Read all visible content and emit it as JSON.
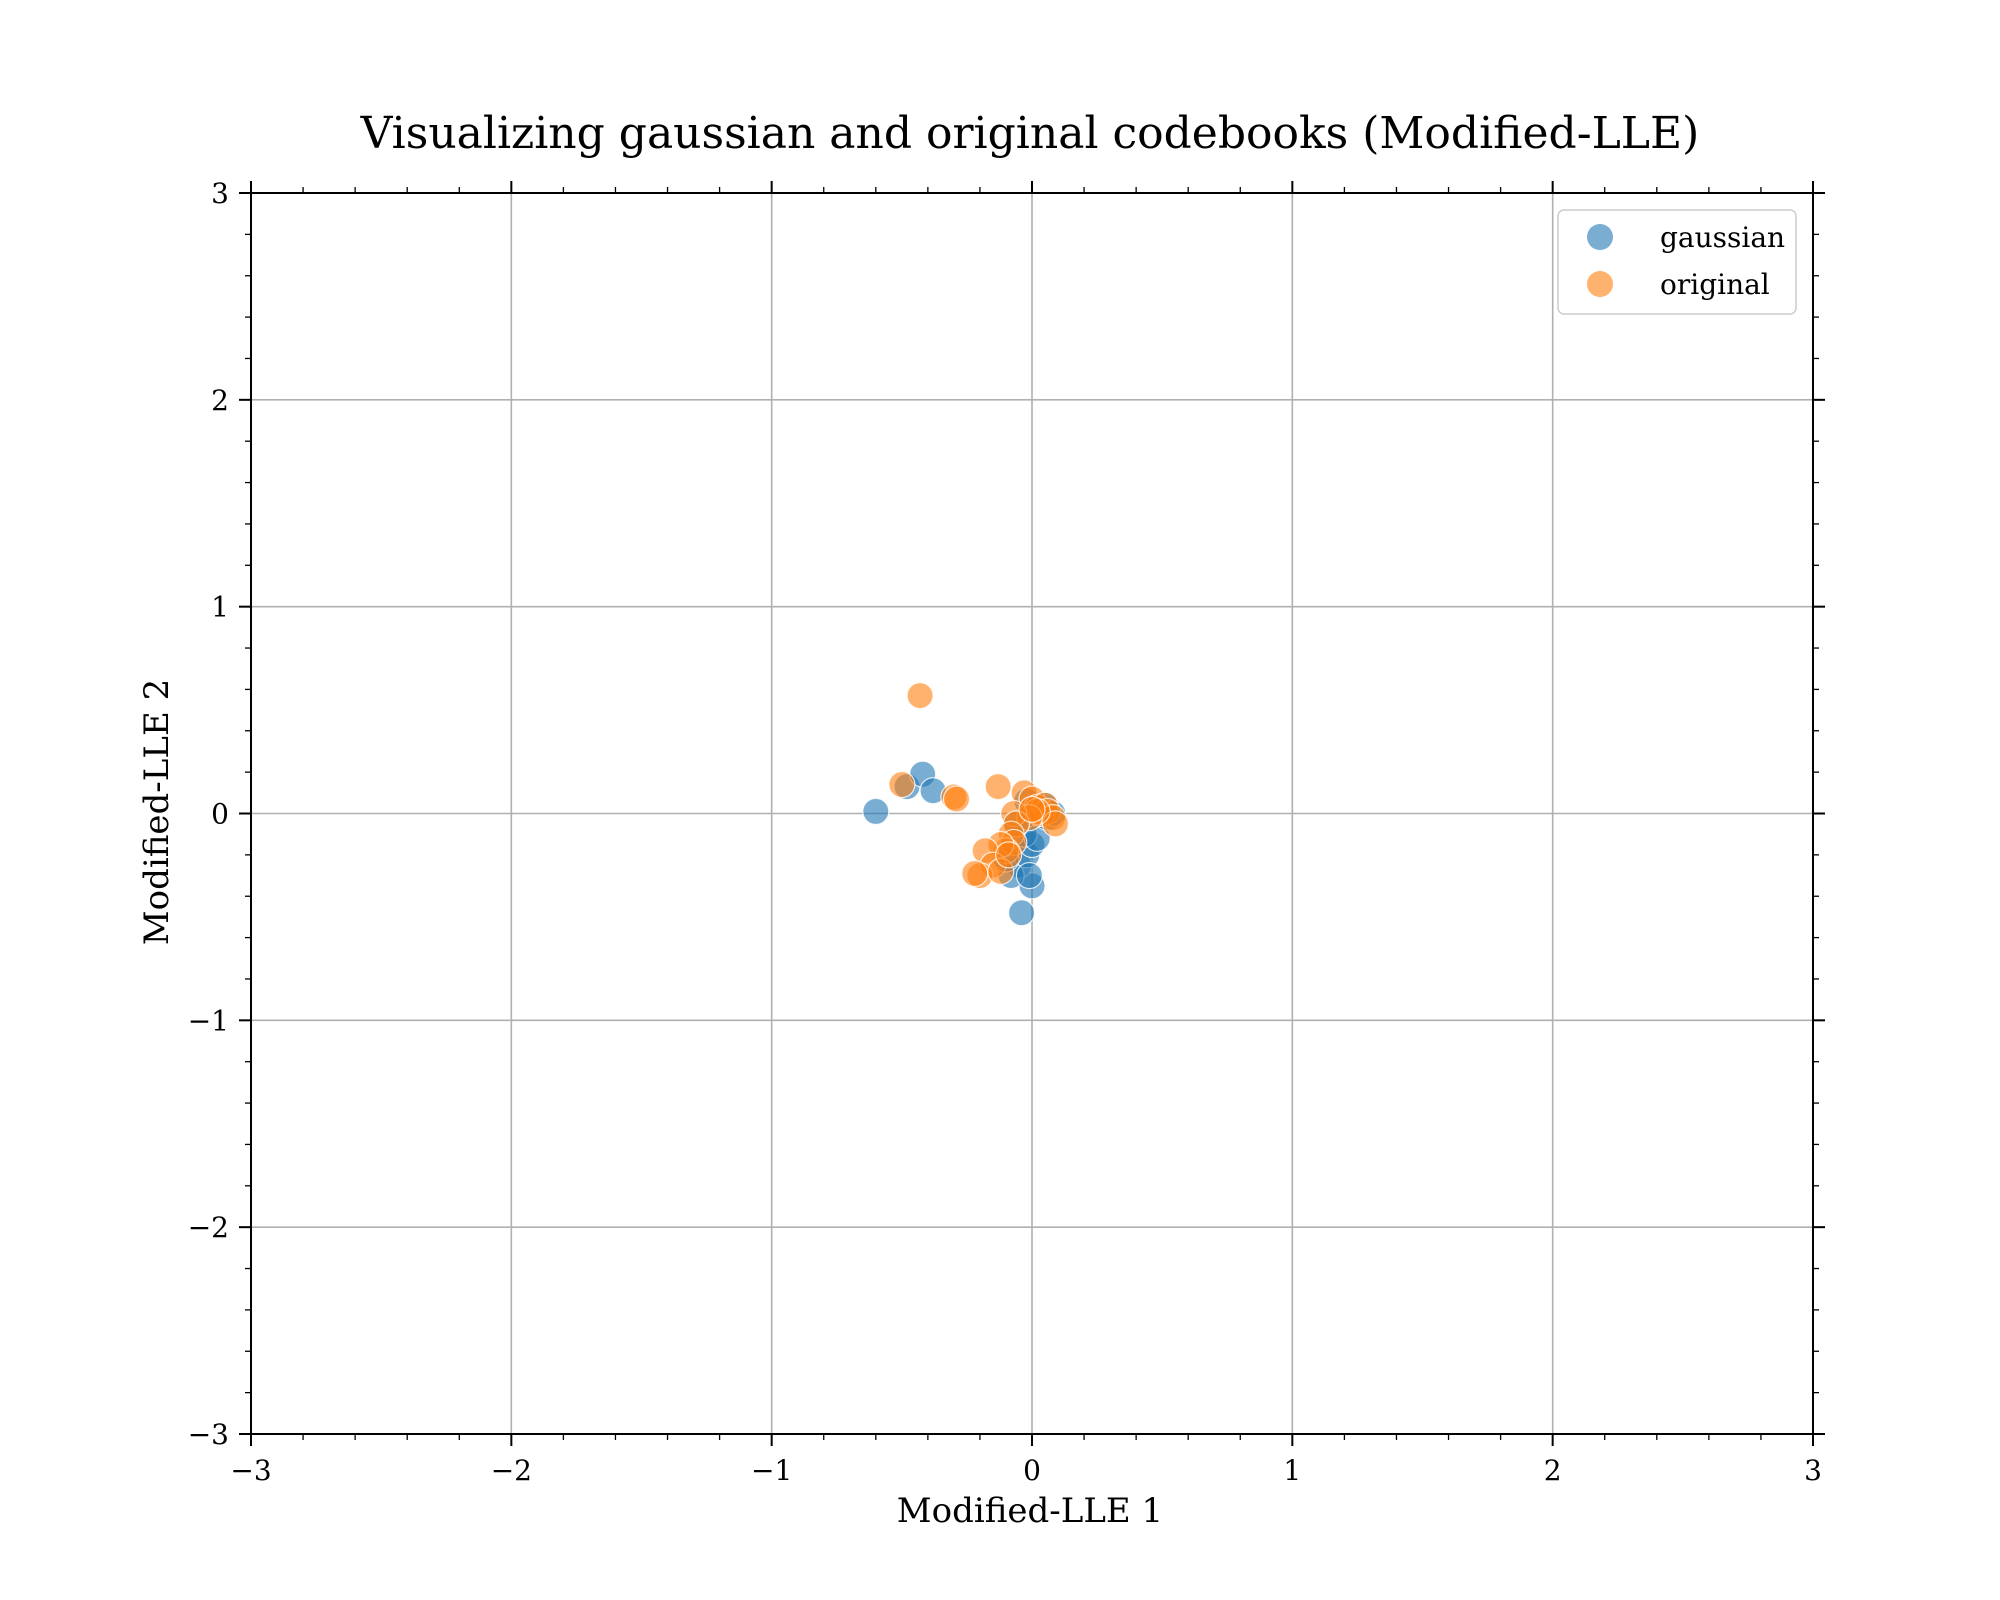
{
  "chart_data": {
    "type": "scatter",
    "title": "Visualizing gaussian and original codebooks (Modified-LLE)",
    "xlabel": "Modified-LLE 1",
    "ylabel": "Modified-LLE 2",
    "xlim": [
      -3,
      3
    ],
    "ylim": [
      -3,
      3
    ],
    "xticks": [
      -3,
      -2,
      -1,
      0,
      1,
      2,
      3
    ],
    "yticks": [
      -3,
      -2,
      -1,
      0,
      1,
      2,
      3
    ],
    "xtick_labels": [
      "−3",
      "−2",
      "−1",
      "0",
      "1",
      "2",
      "3"
    ],
    "ytick_labels": [
      "−3",
      "−2",
      "−1",
      "0",
      "1",
      "2",
      "3"
    ],
    "grid": true,
    "legend_position": "top-right",
    "series": [
      {
        "name": "gaussian",
        "color": "#1f77b4",
        "points": [
          {
            "x": -0.6,
            "y": 0.01
          },
          {
            "x": -0.48,
            "y": 0.13
          },
          {
            "x": -0.42,
            "y": 0.19
          },
          {
            "x": -0.38,
            "y": 0.11
          },
          {
            "x": -0.04,
            "y": -0.48
          },
          {
            "x": 0.0,
            "y": -0.35
          },
          {
            "x": -0.05,
            "y": -0.25
          },
          {
            "x": -0.08,
            "y": -0.3
          },
          {
            "x": -0.02,
            "y": -0.2
          },
          {
            "x": 0.0,
            "y": -0.15
          },
          {
            "x": -0.03,
            "y": -0.1
          },
          {
            "x": 0.02,
            "y": -0.12
          },
          {
            "x": -0.06,
            "y": -0.05
          },
          {
            "x": -0.1,
            "y": -0.22
          },
          {
            "x": 0.03,
            "y": 0.02
          },
          {
            "x": 0.05,
            "y": 0.04
          },
          {
            "x": -0.02,
            "y": 0.06
          },
          {
            "x": 0.06,
            "y": -0.02
          },
          {
            "x": 0.08,
            "y": 0.0
          },
          {
            "x": -0.01,
            "y": -0.3
          }
        ]
      },
      {
        "name": "original",
        "color": "#ff7f0e",
        "points": [
          {
            "x": -0.43,
            "y": 0.57
          },
          {
            "x": -0.5,
            "y": 0.14
          },
          {
            "x": -0.3,
            "y": 0.08
          },
          {
            "x": -0.29,
            "y": 0.07
          },
          {
            "x": -0.13,
            "y": 0.13
          },
          {
            "x": -0.03,
            "y": 0.1
          },
          {
            "x": 0.0,
            "y": 0.07
          },
          {
            "x": 0.02,
            "y": 0.03
          },
          {
            "x": 0.04,
            "y": 0.0
          },
          {
            "x": 0.05,
            "y": 0.04
          },
          {
            "x": 0.06,
            "y": 0.01
          },
          {
            "x": 0.08,
            "y": -0.02
          },
          {
            "x": 0.09,
            "y": -0.05
          },
          {
            "x": 0.02,
            "y": 0.01
          },
          {
            "x": -0.01,
            "y": -0.02
          },
          {
            "x": -0.07,
            "y": 0.0
          },
          {
            "x": -0.06,
            "y": -0.05
          },
          {
            "x": -0.08,
            "y": -0.1
          },
          {
            "x": -0.07,
            "y": -0.14
          },
          {
            "x": -0.1,
            "y": -0.18
          },
          {
            "x": -0.12,
            "y": -0.15
          },
          {
            "x": -0.18,
            "y": -0.18
          },
          {
            "x": -0.15,
            "y": -0.25
          },
          {
            "x": -0.2,
            "y": -0.3
          },
          {
            "x": -0.22,
            "y": -0.29
          },
          {
            "x": -0.12,
            "y": -0.28
          },
          {
            "x": -0.09,
            "y": -0.2
          },
          {
            "x": 0.0,
            "y": 0.02
          }
        ]
      }
    ]
  }
}
